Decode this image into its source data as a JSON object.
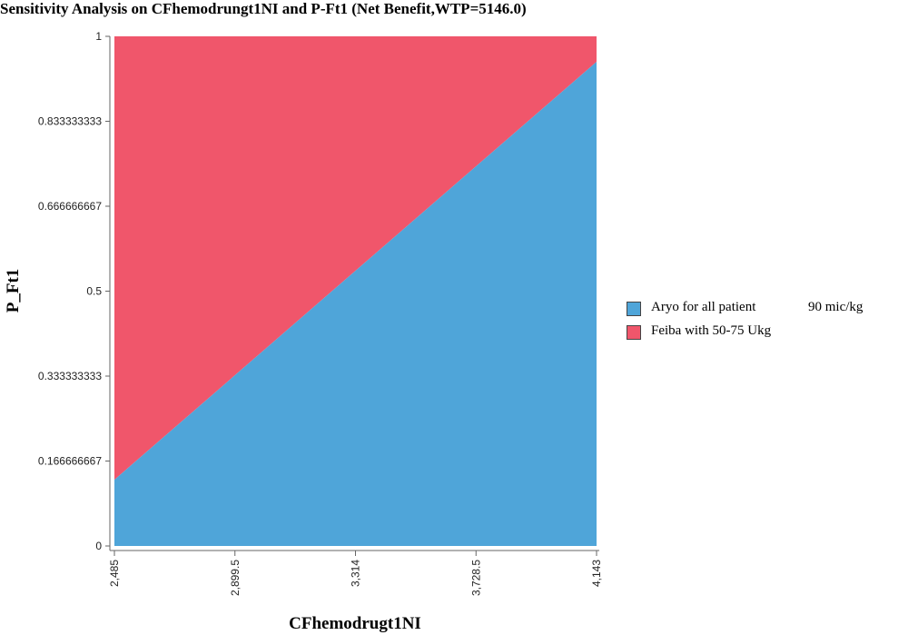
{
  "chart_data": {
    "type": "area",
    "title": "Sensitivity Analysis on CFhemodrungt1NI and P-Ft1 (Net Benefit,WTP=5146.0)",
    "xlabel": "CFhemodrugt1NI",
    "ylabel": "P_Ft1",
    "xlim": [
      2485,
      4143
    ],
    "ylim": [
      0,
      1
    ],
    "x_ticks": [
      "2,485",
      "2,899.5",
      "3,314",
      "3,728.5",
      "4,143"
    ],
    "y_ticks": [
      "0",
      "0.166666667",
      "0.333333333",
      "0.5",
      "0.666666667",
      "0.833333333",
      "1"
    ],
    "boundary": {
      "x": [
        2485,
        4143
      ],
      "y": [
        0.13,
        0.95
      ]
    },
    "regions": [
      {
        "name": "Aryo for all patient",
        "name_extra": "90 mic/kg",
        "position": "below boundary",
        "color": "#4fa5d9"
      },
      {
        "name": "Feiba with 50-75 Ukg",
        "position": "above boundary",
        "color": "#f0566b"
      }
    ],
    "grid": false,
    "legend_position": "right"
  }
}
